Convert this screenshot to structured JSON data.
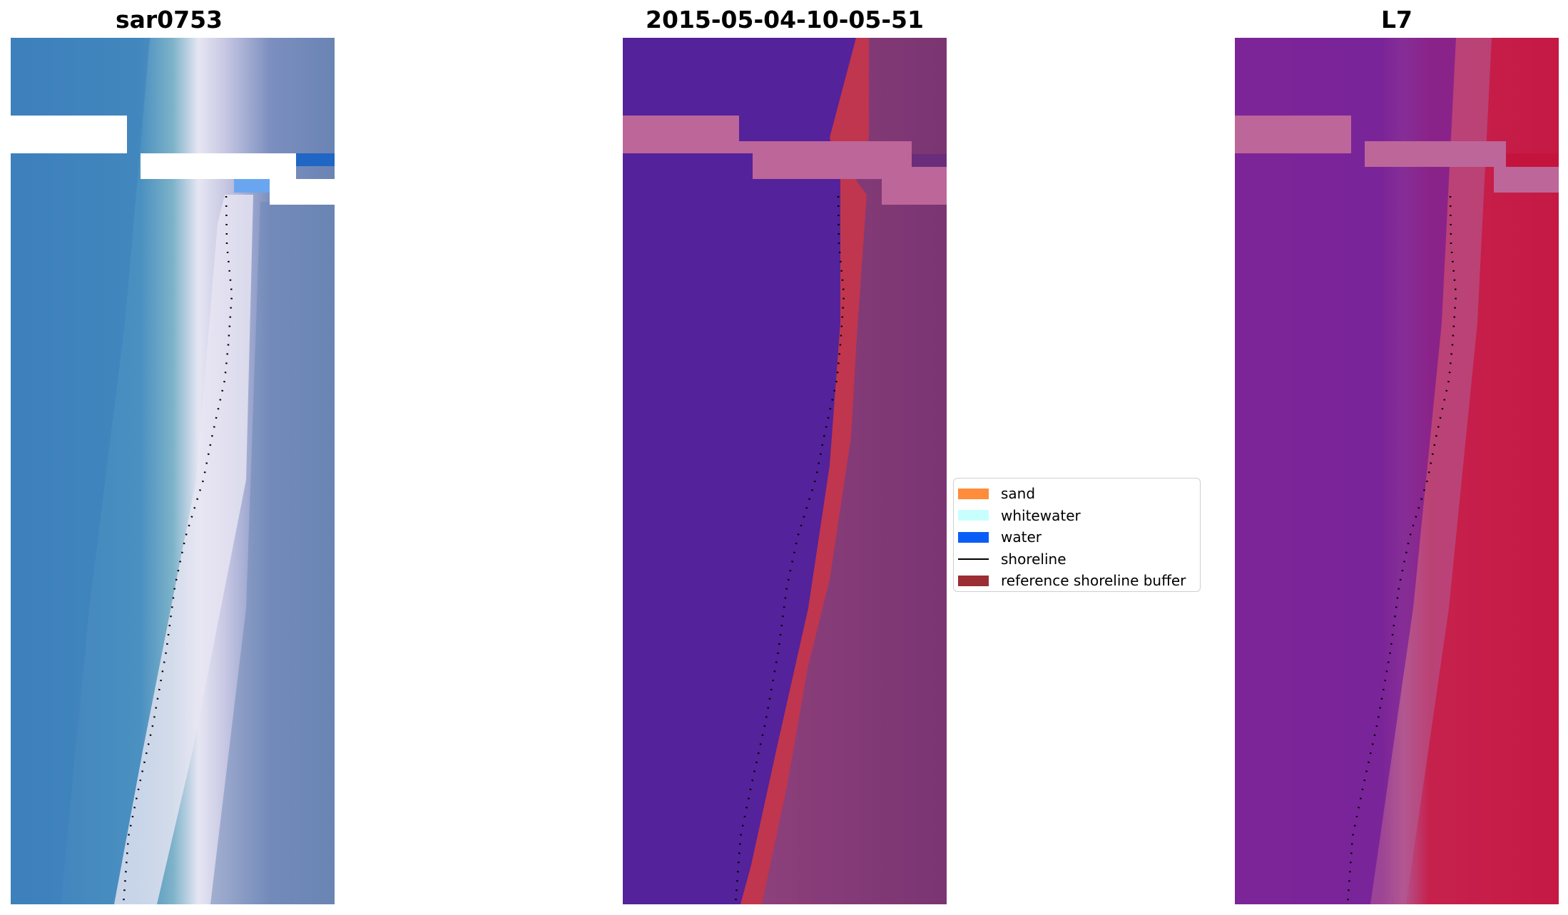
{
  "panels": [
    {
      "title": "sar0753"
    },
    {
      "title": "2015-05-04-10-05-51"
    },
    {
      "title": "L7"
    }
  ],
  "legend": {
    "placement": "center",
    "items": [
      {
        "label": "sand",
        "color": "#ff8c3b"
      },
      {
        "label": "whitewater",
        "color": "#c8fffd"
      },
      {
        "label": "water",
        "color": "#0a5ef5"
      },
      {
        "label": "shoreline",
        "color": "#000000"
      },
      {
        "label": "reference shoreline buffer",
        "color": "#9b2e33"
      }
    ]
  },
  "colors": {
    "rgb_water": "#3f82bb",
    "rgb_beach": "#e8e6f2",
    "rgb_land": "#6a84b3",
    "class_water": "#54229a",
    "class_buffer": "#c0364e",
    "class_land": "#8a3e7a",
    "class_mask": "#bd6699",
    "nir_water": "#7b2499",
    "nir_land": "#c51944",
    "mask_fill": "#ffffff"
  }
}
